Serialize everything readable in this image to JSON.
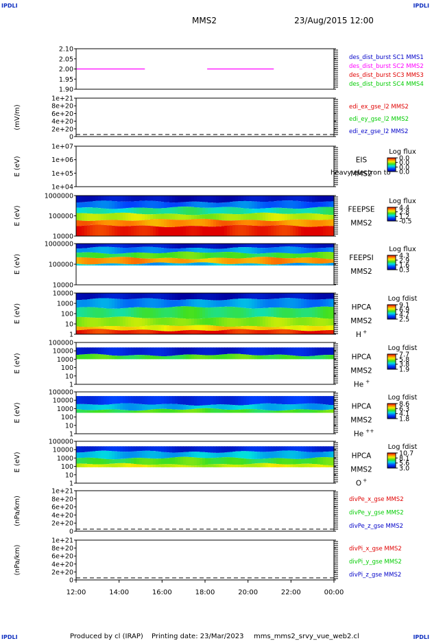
{
  "header": {
    "corner_label": "IPDLI",
    "spacecraft": "MMS2",
    "datetime": "23/Aug/2015 12:00"
  },
  "footer": {
    "produced_by": "Produced by  cl (IRAP)",
    "printing_date": "Printing date: 23/Mar/2023",
    "script_name": "mms_mms2_srvy_vue_web2.cl"
  },
  "colors": {
    "mms1": "#0000c8",
    "mms2": "#ff00ff",
    "mms3": "#e00000",
    "mms4": "#00cc00",
    "x": "#e00000",
    "y": "#00cc00",
    "z": "#0000c8"
  },
  "chart_data": [
    {
      "type": "line",
      "id": "burst",
      "yticks": [
        "2.10",
        "2.05",
        "2.00",
        "1.95",
        "1.90"
      ],
      "ylim": [
        1.9,
        2.1
      ],
      "legend": [
        {
          "label": "des_dist_burst SC1 MMS1",
          "color_key": "mms1"
        },
        {
          "label": "des_dist_burst SC2 MMS2",
          "color_key": "mms2"
        },
        {
          "label": "des_dist_burst SC3 MMS3",
          "color_key": "mms3"
        },
        {
          "label": "des_dist_burst SC4 MMS4",
          "color_key": "mms4"
        }
      ],
      "series": [
        {
          "name": "des_dist_burst SC2 MMS2",
          "color_key": "mms2",
          "segments": [
            [
              12.0,
              15.2,
              2.0
            ],
            [
              18.1,
              21.2,
              2.0
            ]
          ]
        }
      ]
    },
    {
      "type": "line",
      "id": "edi",
      "ylabel": "(mV/m)",
      "yticks": [
        "1e+21",
        "8e+20",
        "6e+20",
        "4e+20",
        "2e+20",
        "0"
      ],
      "legend": [
        {
          "label": "edi_ex_gse_l2 MMS2",
          "color_key": "x"
        },
        {
          "label": "edi_ey_gse_l2 MMS2",
          "color_key": "y"
        },
        {
          "label": "edi_ez_gse_l2 MMS2",
          "color_key": "z"
        }
      ],
      "zero_line": true
    },
    {
      "type": "heatmap",
      "id": "eis",
      "ylabel": "E (eV)",
      "yticks": [
        "1e+07",
        "1e+06",
        "1e+05",
        "1e+04"
      ],
      "labels": [
        "EIS",
        "MMS2"
      ],
      "overlay_text": "heavy electron to",
      "colorbar_title": "Log flux",
      "colorbar_ticks": [
        "0.0",
        "0.0",
        "0.0",
        "0.0"
      ],
      "empty": true
    },
    {
      "type": "heatmap",
      "id": "feepse",
      "ylabel": "E (eV)",
      "yticks": [
        "1000000",
        "100000",
        "10000"
      ],
      "labels": [
        "FEEPSE",
        "MMS2"
      ],
      "colorbar_title": "Log flux",
      "colorbar_ticks": [
        "4.4",
        "2.8",
        "1.2",
        "-0.5"
      ],
      "bands": [
        {
          "from": 0.0,
          "to": 0.15,
          "level": 0.05
        },
        {
          "from": 0.15,
          "to": 0.3,
          "level": 0.25
        },
        {
          "from": 0.3,
          "to": 0.45,
          "level": 0.45
        },
        {
          "from": 0.45,
          "to": 0.6,
          "level": 0.65
        },
        {
          "from": 0.6,
          "to": 0.75,
          "level": 0.85
        },
        {
          "from": 0.75,
          "to": 1.0,
          "level": 0.98
        }
      ]
    },
    {
      "type": "heatmap",
      "id": "feepsi",
      "ylabel": "E (eV)",
      "yticks": [
        "1000000",
        "100000",
        "10000"
      ],
      "labels": [
        "FEEPSI",
        "MMS2"
      ],
      "colorbar_title": "Log flux",
      "colorbar_ticks": [
        "4.3",
        "2.9",
        "1.6",
        "0.3"
      ],
      "bands": [
        {
          "from": 0.0,
          "to": 0.1,
          "level": 0.08
        },
        {
          "from": 0.1,
          "to": 0.22,
          "level": 0.3
        },
        {
          "from": 0.22,
          "to": 0.35,
          "level": 0.55
        },
        {
          "from": 0.35,
          "to": 0.48,
          "level": 0.82
        },
        {
          "from": 0.48,
          "to": 0.53,
          "level": 0.35
        }
      ]
    },
    {
      "type": "heatmap",
      "id": "hpca_h",
      "ylabel": "E (eV)",
      "yticks": [
        "10000",
        "1000",
        "100",
        "10",
        "1"
      ],
      "labels": [
        "HPCA",
        "MMS2"
      ],
      "species": "H",
      "species_sup": "+",
      "colorbar_title": "Log fdist",
      "colorbar_ticks": [
        "9.1",
        "6.9",
        "4.7",
        "2.5"
      ],
      "bands": [
        {
          "from": 0.0,
          "to": 0.15,
          "level": 0.05
        },
        {
          "from": 0.15,
          "to": 0.35,
          "level": 0.3
        },
        {
          "from": 0.35,
          "to": 0.6,
          "level": 0.5
        },
        {
          "from": 0.6,
          "to": 0.8,
          "level": 0.62
        },
        {
          "from": 0.8,
          "to": 0.9,
          "level": 0.75
        },
        {
          "from": 0.9,
          "to": 1.0,
          "level": 0.97
        }
      ]
    },
    {
      "type": "heatmap",
      "id": "hpca_he",
      "ylabel": "E (eV)",
      "yticks": [
        "100000",
        "10000",
        "1000",
        "100",
        "10",
        "1"
      ],
      "labels": [
        "HPCA",
        "MMS2"
      ],
      "species": "He",
      "species_sup": "+",
      "colorbar_title": "Log fdist",
      "colorbar_ticks": [
        "7.7",
        "5.8",
        "3.8",
        "1.9"
      ],
      "bands": [
        {
          "from": 0.12,
          "to": 0.3,
          "level": 0.1
        },
        {
          "from": 0.3,
          "to": 0.4,
          "level": 0.55
        }
      ]
    },
    {
      "type": "heatmap",
      "id": "hpca_hepp",
      "ylabel": "E (eV)",
      "yticks": [
        "100000",
        "10000",
        "1000",
        "100",
        "10",
        "1"
      ],
      "labels": [
        "HPCA",
        "MMS2"
      ],
      "species": "He",
      "species_sup": "++",
      "colorbar_title": "Log fdist",
      "colorbar_ticks": [
        "8.6",
        "6.3",
        "4.1",
        "1.8"
      ],
      "bands": [
        {
          "from": 0.1,
          "to": 0.3,
          "level": 0.15
        },
        {
          "from": 0.3,
          "to": 0.42,
          "level": 0.35
        },
        {
          "from": 0.42,
          "to": 0.5,
          "level": 0.55
        }
      ]
    },
    {
      "type": "heatmap",
      "id": "hpca_o",
      "ylabel": "E (eV)",
      "yticks": [
        "100000",
        "10000",
        "1000",
        "100",
        "10",
        "1"
      ],
      "labels": [
        "HPCA",
        "MMS2"
      ],
      "species": "O",
      "species_sup": "+",
      "colorbar_title": "Log fdist",
      "colorbar_ticks": [
        "10.7",
        "8.1",
        "5.6",
        "3.0"
      ],
      "bands": [
        {
          "from": 0.12,
          "to": 0.25,
          "level": 0.12
        },
        {
          "from": 0.25,
          "to": 0.4,
          "level": 0.35
        },
        {
          "from": 0.4,
          "to": 0.55,
          "level": 0.55
        },
        {
          "from": 0.55,
          "to": 0.62,
          "level": 0.68
        }
      ]
    },
    {
      "type": "line",
      "id": "divpe",
      "ylabel": "(nPa/km)",
      "yticks": [
        "1e+21",
        "8e+20",
        "6e+20",
        "4e+20",
        "2e+20",
        "0"
      ],
      "legend": [
        {
          "label": "divPe_x_gse MMS2",
          "color_key": "x"
        },
        {
          "label": "divPe_y_gse MMS2",
          "color_key": "y"
        },
        {
          "label": "divPe_z_gse MMS2",
          "color_key": "z"
        }
      ],
      "zero_line": true
    },
    {
      "type": "line",
      "id": "divpi",
      "ylabel": "(nPa/km)",
      "yticks": [
        "1e+21",
        "8e+20",
        "6e+20",
        "4e+20",
        "2e+20",
        "0"
      ],
      "legend": [
        {
          "label": "divPi_x_gse MMS2",
          "color_key": "x"
        },
        {
          "label": "divPi_y_gse MMS2",
          "color_key": "y"
        },
        {
          "label": "divPi_z_gse MMS2",
          "color_key": "z"
        }
      ],
      "zero_line": true
    }
  ],
  "time_axis": {
    "labels": [
      "12:00",
      "14:00",
      "16:00",
      "18:00",
      "20:00",
      "22:00",
      "00:00"
    ],
    "range_hours": [
      12,
      24
    ]
  }
}
